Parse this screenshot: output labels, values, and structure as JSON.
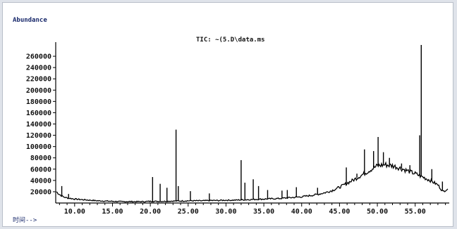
{
  "chart_data": {
    "type": "line",
    "title": "TIC: ~(5.D\\data.ms",
    "ylabel": "Abundance",
    "xlabel": "时间-->",
    "xlim": [
      7.5,
      59.5
    ],
    "ylim": [
      0,
      285000
    ],
    "yticks": [
      20000,
      40000,
      60000,
      80000,
      100000,
      120000,
      140000,
      160000,
      180000,
      200000,
      220000,
      240000,
      260000
    ],
    "xticks": [
      "10.00",
      "15.00",
      "20.00",
      "25.00",
      "30.00",
      "35.00",
      "40.00",
      "45.00",
      "50.00",
      "55.00"
    ],
    "grid": false,
    "series": [
      {
        "x": [
          7.6,
          8.0,
          8.5,
          9.0,
          10.0,
          11.0,
          12.0,
          13.0,
          14.0,
          15.0,
          16.0,
          17.0,
          18.0,
          19.0,
          20.0,
          21.0,
          22.0,
          23.0,
          24.0,
          25.0,
          26.0,
          27.0,
          28.0,
          29.0,
          30.0,
          31.0,
          32.0,
          33.0,
          34.0,
          35.0,
          36.0,
          37.0,
          38.0,
          39.0,
          40.0,
          41.0,
          42.0,
          43.0,
          44.0,
          45.0,
          46.0,
          47.0,
          48.0,
          49.0,
          50.0,
          51.0,
          52.0,
          53.0,
          54.0,
          55.0,
          56.0,
          57.0,
          58.0,
          58.7,
          59.0,
          59.3
        ],
        "values": [
          20000,
          15000,
          11000,
          9000,
          7000,
          6000,
          5000,
          4000,
          3500,
          3000,
          2500,
          2500,
          2500,
          2500,
          3000,
          3000,
          3000,
          3500,
          3500,
          4000,
          4000,
          4000,
          4500,
          4500,
          5000,
          5000,
          5500,
          6000,
          6500,
          7000,
          7500,
          8000,
          9000,
          10000,
          11000,
          13000,
          15000,
          18000,
          22000,
          28000,
          35000,
          42000,
          50000,
          58000,
          66000,
          68000,
          66000,
          62000,
          57000,
          52000,
          46000,
          40000,
          32000,
          20000,
          23000,
          25000
        ]
      }
    ],
    "peaks": [
      {
        "x": 8.3,
        "y": 30000
      },
      {
        "x": 9.2,
        "y": 16000
      },
      {
        "x": 20.3,
        "y": 46000
      },
      {
        "x": 21.3,
        "y": 34000
      },
      {
        "x": 22.2,
        "y": 27000
      },
      {
        "x": 23.4,
        "y": 130000
      },
      {
        "x": 23.7,
        "y": 30000
      },
      {
        "x": 25.3,
        "y": 21000
      },
      {
        "x": 27.8,
        "y": 17000
      },
      {
        "x": 32.0,
        "y": 76000
      },
      {
        "x": 32.5,
        "y": 36000
      },
      {
        "x": 33.6,
        "y": 42000
      },
      {
        "x": 34.3,
        "y": 30000
      },
      {
        "x": 35.5,
        "y": 23000
      },
      {
        "x": 37.4,
        "y": 22000
      },
      {
        "x": 38.1,
        "y": 23000
      },
      {
        "x": 39.3,
        "y": 28000
      },
      {
        "x": 42.1,
        "y": 27000
      },
      {
        "x": 45.9,
        "y": 63000
      },
      {
        "x": 47.3,
        "y": 52000
      },
      {
        "x": 48.3,
        "y": 95000
      },
      {
        "x": 49.5,
        "y": 92000
      },
      {
        "x": 50.1,
        "y": 117000
      },
      {
        "x": 50.8,
        "y": 90000
      },
      {
        "x": 51.6,
        "y": 80000
      },
      {
        "x": 53.2,
        "y": 70000
      },
      {
        "x": 54.3,
        "y": 67000
      },
      {
        "x": 55.6,
        "y": 120000
      },
      {
        "x": 55.8,
        "y": 280000
      },
      {
        "x": 57.2,
        "y": 60000
      },
      {
        "x": 58.6,
        "y": 38000
      }
    ]
  }
}
